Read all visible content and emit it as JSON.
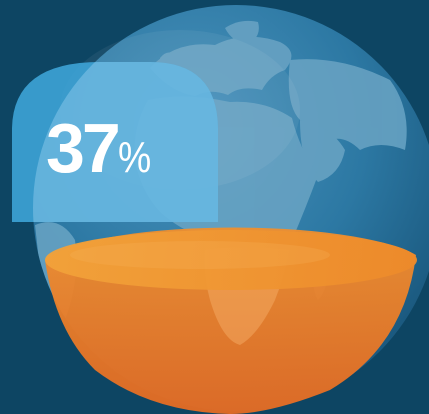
{
  "stat": {
    "value": "37",
    "unit": "%"
  },
  "visual": {
    "globe_icon": "globe-africa-europe",
    "bowl_icon": "orange-hemisphere-bowl",
    "badge_icon": "rounded-blue-tab",
    "share_shown_by_bowl": 0.37
  },
  "colors": {
    "background": "#0d4563",
    "ocean": "#2a7aa6",
    "land": "#5f9bbd",
    "badge": "#3fa6d9",
    "bowl_top": "#e98a2a",
    "bowl_bottom": "#e86e23",
    "text": "#ffffff"
  }
}
